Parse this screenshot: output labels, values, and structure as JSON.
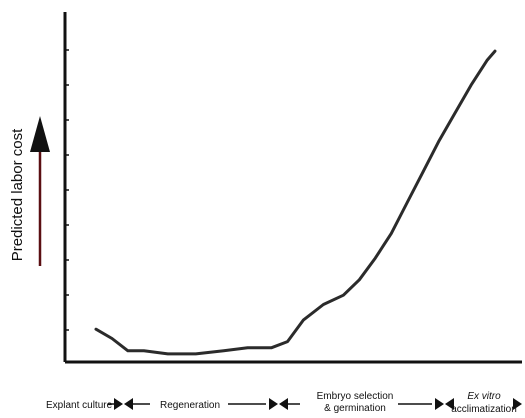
{
  "chart_data": {
    "type": "line",
    "ylabel": "Predicted labor cost",
    "xlabel": "",
    "title": "",
    "grid": false,
    "legend": "none",
    "colors": {
      "line": "#2b2b2b",
      "axis": "#111111",
      "arrow_shaft": "#5a0f12",
      "arrow_head": "#111111"
    },
    "stages": [
      {
        "label": "Explant culture"
      },
      {
        "label": "Regeneration"
      },
      {
        "label": "Embryo selection",
        "label_line2": "& germination"
      },
      {
        "label": "Ex vitro",
        "label_line2": "acclimatization",
        "italic_first_line": true
      }
    ],
    "series": [
      {
        "x": [
          0.0,
          0.04,
          0.08,
          0.12,
          0.18,
          0.25,
          0.32,
          0.38,
          0.44,
          0.48,
          0.52,
          0.57,
          0.62,
          0.66,
          0.7,
          0.74,
          0.78,
          0.82,
          0.86,
          0.9,
          0.94,
          0.98,
          1.0
        ],
        "values": [
          0.09,
          0.06,
          0.02,
          0.02,
          0.01,
          0.01,
          0.02,
          0.03,
          0.03,
          0.05,
          0.12,
          0.17,
          0.2,
          0.25,
          0.32,
          0.4,
          0.5,
          0.6,
          0.7,
          0.79,
          0.88,
          0.96,
          0.99
        ]
      }
    ]
  }
}
